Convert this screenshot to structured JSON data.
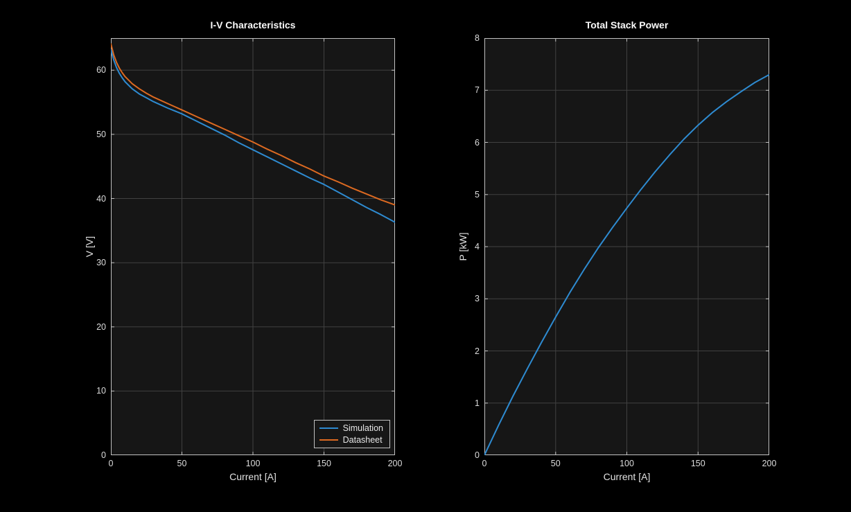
{
  "colors": {
    "figure_bg": "#000000",
    "axes_bg": "#161616",
    "grid": "#414141",
    "axis": "#c2c2c2",
    "tick_label": "#dcdcdc",
    "axis_label": "#e2e2e2",
    "title": "#fafafa",
    "blue": "#2e8bd1",
    "orange": "#dd6a21",
    "legend_bg": "#171717",
    "legend_border": "#c2c2c2",
    "legend_text": "#e6e6e6"
  },
  "chart_data": [
    {
      "type": "line",
      "title": "I-V Characteristics",
      "xlabel": "Current [A]",
      "ylabel": "V [V]",
      "xlim": [
        0,
        200
      ],
      "ylim": [
        0,
        65
      ],
      "xticks": [
        0,
        50,
        100,
        150,
        200
      ],
      "yticks": [
        0,
        10,
        20,
        30,
        40,
        50,
        60
      ],
      "grid": true,
      "legend": {
        "location": "southeast",
        "entries": [
          "Simulation",
          "Datasheet"
        ]
      },
      "series": [
        {
          "name": "Simulation",
          "color": "blue",
          "x": [
            0,
            2,
            4,
            6,
            8,
            10,
            15,
            20,
            25,
            30,
            40,
            50,
            60,
            70,
            80,
            90,
            100,
            110,
            120,
            130,
            140,
            150,
            160,
            170,
            180,
            190,
            200
          ],
          "y": [
            63.2,
            61.6,
            60.4,
            59.5,
            58.8,
            58.2,
            57.1,
            56.3,
            55.7,
            55.1,
            54.1,
            53.2,
            52.1,
            51.0,
            49.9,
            48.7,
            47.6,
            46.5,
            45.4,
            44.3,
            43.2,
            42.2,
            41.0,
            39.8,
            38.6,
            37.5,
            36.3
          ]
        },
        {
          "name": "Datasheet",
          "color": "orange",
          "x": [
            0,
            2,
            4,
            6,
            8,
            10,
            15,
            20,
            25,
            30,
            40,
            50,
            60,
            70,
            80,
            90,
            100,
            110,
            120,
            130,
            140,
            150,
            160,
            170,
            180,
            190,
            200
          ],
          "y": [
            64.1,
            62.4,
            61.2,
            60.3,
            59.6,
            59.0,
            57.9,
            57.1,
            56.4,
            55.8,
            54.8,
            53.8,
            52.8,
            51.8,
            50.8,
            49.8,
            48.8,
            47.7,
            46.7,
            45.6,
            44.6,
            43.5,
            42.6,
            41.6,
            40.7,
            39.8,
            39.0
          ]
        }
      ]
    },
    {
      "type": "line",
      "title": "Total Stack Power",
      "xlabel": "Current [A]",
      "ylabel": "P [kW]",
      "xlim": [
        0,
        200
      ],
      "ylim": [
        0,
        8
      ],
      "xticks": [
        0,
        50,
        100,
        150,
        200
      ],
      "yticks": [
        0,
        1,
        2,
        3,
        4,
        5,
        6,
        7,
        8
      ],
      "grid": true,
      "series": [
        {
          "name": "Total Stack Power",
          "color": "blue",
          "x": [
            0,
            10,
            20,
            30,
            40,
            50,
            60,
            70,
            80,
            90,
            100,
            110,
            120,
            130,
            140,
            150,
            160,
            170,
            180,
            190,
            200
          ],
          "y": [
            0,
            0.58,
            1.13,
            1.65,
            2.16,
            2.65,
            3.12,
            3.56,
            3.98,
            4.37,
            4.74,
            5.1,
            5.44,
            5.76,
            6.06,
            6.33,
            6.57,
            6.78,
            6.97,
            7.15,
            7.3
          ]
        }
      ]
    }
  ]
}
